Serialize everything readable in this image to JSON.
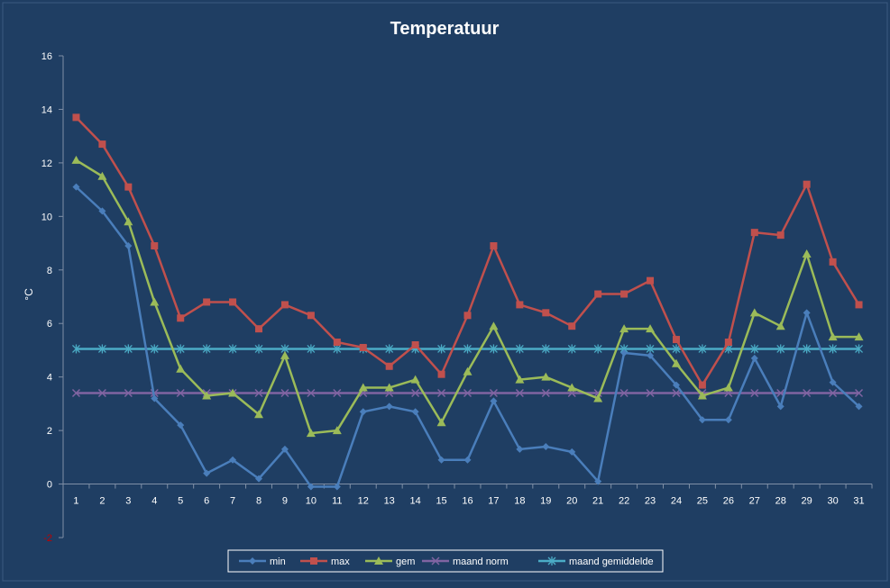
{
  "chart_data": {
    "type": "line",
    "title": "Temperatuur",
    "ylabel": "°C",
    "xlabel": "",
    "ylim": [
      -2,
      16
    ],
    "yticks": [
      -2,
      0,
      2,
      4,
      6,
      8,
      10,
      12,
      14,
      16
    ],
    "x": [
      1,
      2,
      3,
      4,
      5,
      6,
      7,
      8,
      9,
      10,
      11,
      12,
      13,
      14,
      15,
      16,
      17,
      18,
      19,
      20,
      21,
      22,
      23,
      24,
      25,
      26,
      27,
      28,
      29,
      30,
      31
    ],
    "legend_position": "bottom",
    "grid": false,
    "series": [
      {
        "name": "min",
        "color": "#4a7ebb",
        "marker": "diamond",
        "values": [
          11.1,
          10.2,
          8.9,
          3.2,
          2.2,
          0.4,
          0.9,
          0.2,
          1.3,
          -0.1,
          -0.1,
          2.7,
          2.9,
          2.7,
          0.9,
          0.9,
          3.1,
          1.3,
          1.4,
          1.2,
          0.1,
          4.9,
          4.8,
          3.7,
          2.4,
          2.4,
          4.7,
          2.9,
          6.4,
          3.8,
          2.9
        ]
      },
      {
        "name": "max",
        "color": "#c0504d",
        "marker": "square",
        "values": [
          13.7,
          12.7,
          11.1,
          8.9,
          6.2,
          6.8,
          6.8,
          5.8,
          6.7,
          6.3,
          5.3,
          5.1,
          4.4,
          5.2,
          4.1,
          6.3,
          8.9,
          6.7,
          6.4,
          5.9,
          7.1,
          7.1,
          7.6,
          5.4,
          3.7,
          5.3,
          9.4,
          9.3,
          11.2,
          8.3,
          6.7
        ]
      },
      {
        "name": "gem",
        "color": "#9bbb59",
        "marker": "triangle",
        "values": [
          12.1,
          11.5,
          9.8,
          6.8,
          4.3,
          3.3,
          3.4,
          2.6,
          4.8,
          1.9,
          2.0,
          3.6,
          3.6,
          3.9,
          2.3,
          4.2,
          5.9,
          3.9,
          4.0,
          3.6,
          3.2,
          5.8,
          5.8,
          4.5,
          3.3,
          3.6,
          6.4,
          5.9,
          8.6,
          5.5,
          5.5
        ]
      },
      {
        "name": "maand norm",
        "color": "#8064a2",
        "marker": "x",
        "values": [
          3.4,
          3.4,
          3.4,
          3.4,
          3.4,
          3.4,
          3.4,
          3.4,
          3.4,
          3.4,
          3.4,
          3.4,
          3.4,
          3.4,
          3.4,
          3.4,
          3.4,
          3.4,
          3.4,
          3.4,
          3.4,
          3.4,
          3.4,
          3.4,
          3.4,
          3.4,
          3.4,
          3.4,
          3.4,
          3.4,
          3.4
        ]
      },
      {
        "name": "maand gemiddelde",
        "color": "#4bacc6",
        "marker": "star",
        "values": [
          5.05,
          5.05,
          5.05,
          5.05,
          5.05,
          5.05,
          5.05,
          5.05,
          5.05,
          5.05,
          5.05,
          5.05,
          5.05,
          5.05,
          5.05,
          5.05,
          5.05,
          5.05,
          5.05,
          5.05,
          5.05,
          5.05,
          5.05,
          5.05,
          5.05,
          5.05,
          5.05,
          5.05,
          5.05,
          5.05,
          5.05
        ]
      }
    ]
  }
}
